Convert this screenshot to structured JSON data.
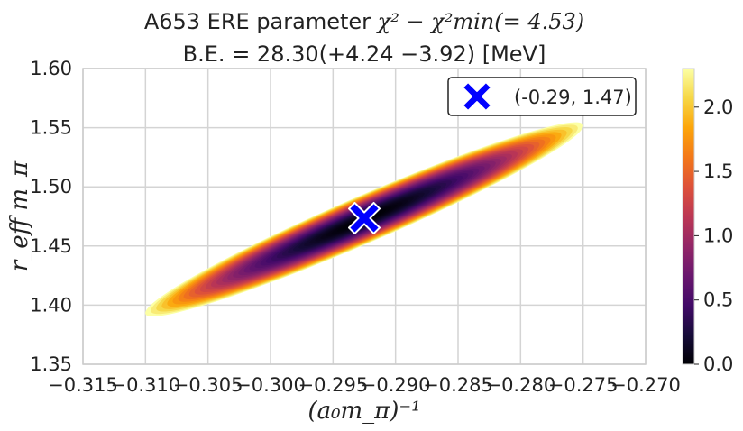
{
  "chart_data": {
    "type": "heatmap",
    "title_line1_prefix": "A653 ERE parameter ",
    "title_line1_math": "χ² − χ²min(= 4.53)",
    "title_line2": "B.E. = 28.30(+4.24 −3.92) [MeV]",
    "xlabel": "(a₀m_π)⁻¹",
    "ylabel": "r_eff m_π",
    "xlim": [
      -0.315,
      -0.27
    ],
    "ylim": [
      1.35,
      1.6
    ],
    "x_ticks": [
      "−0.315",
      "−0.310",
      "−0.305",
      "−0.300",
      "−0.295",
      "−0.290",
      "−0.285",
      "−0.280",
      "−0.275",
      "−0.270"
    ],
    "x_tick_values": [
      -0.315,
      -0.31,
      -0.305,
      -0.3,
      -0.295,
      -0.29,
      -0.285,
      -0.28,
      -0.275,
      -0.27
    ],
    "y_ticks": [
      "1.35",
      "1.40",
      "1.45",
      "1.50",
      "1.55",
      "1.60"
    ],
    "y_tick_values": [
      1.35,
      1.4,
      1.45,
      1.5,
      1.55,
      1.6
    ],
    "grid": true,
    "colormap": "inferno",
    "colorbar_range": [
      0.0,
      2.3
    ],
    "colorbar_ticks": [
      "0.0",
      "0.5",
      "1.0",
      "1.5",
      "2.0"
    ],
    "colorbar_tick_values": [
      0.0,
      0.5,
      1.0,
      1.5,
      2.0
    ],
    "region": {
      "description": "Δχ² ≤ 2.3 confidence ellipse",
      "center": [
        -0.2925,
        1.4725
      ],
      "x_extent": [
        -0.31,
        -0.275
      ],
      "y_extent": [
        1.39,
        1.55
      ]
    },
    "best_fit": {
      "x": -0.2925,
      "y": 1.4735,
      "marker": "X",
      "color": "#0000ff",
      "label": "(-0.29, 1.47)"
    },
    "legend_placement": "top-right"
  }
}
